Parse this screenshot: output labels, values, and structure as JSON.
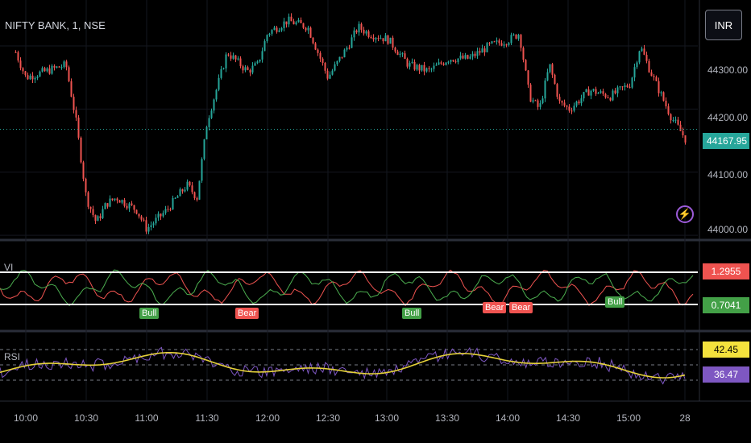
{
  "header": {
    "symbol": "NIFTY BANK, 1, NSE",
    "currency": "INR"
  },
  "colors": {
    "up": "#26a69a",
    "down": "#ef5350",
    "vi_plus": "#4caf50",
    "vi_minus": "#ef5350",
    "rsi": "#7e57c2",
    "rsi_ma": "#e6d23a",
    "price_badge": "#26a69a"
  },
  "price_axis": {
    "ticks": [
      "44300.00",
      "44200.00",
      "44100.00",
      "44000.00"
    ],
    "last_price": "44167.95"
  },
  "vi_pane": {
    "label": "VI",
    "upper_value": "1.2955",
    "lower_value": "0.7041",
    "signals": [
      {
        "text": "Bull",
        "type": "bull",
        "time": "10:57"
      },
      {
        "text": "Bear",
        "type": "bear",
        "time": "11:38"
      },
      {
        "text": "Bull",
        "type": "bull",
        "time": "13:10"
      },
      {
        "text": "Bear",
        "type": "bear",
        "time": "13:51"
      },
      {
        "text": "Bear",
        "type": "bear",
        "time": "13:58"
      },
      {
        "text": "Bull",
        "type": "bull",
        "time": "14:47"
      }
    ]
  },
  "rsi_pane": {
    "label": "RSI",
    "ma_value": "42.45",
    "rsi_value": "36.47"
  },
  "time_axis": [
    "10:00",
    "10:30",
    "11:00",
    "11:30",
    "12:00",
    "12:30",
    "13:00",
    "13:30",
    "14:00",
    "14:30",
    "15:00",
    "28"
  ],
  "chart_data": {
    "type": "line",
    "title": "NIFTY BANK, 1, NSE",
    "xlabel": "",
    "ylabel": "",
    "x": [
      "09:55",
      "10:00",
      "10:10",
      "10:20",
      "10:25",
      "10:30",
      "10:35",
      "10:40",
      "10:45",
      "10:55",
      "11:00",
      "11:10",
      "11:15",
      "11:20",
      "11:25",
      "11:30",
      "11:40",
      "11:50",
      "11:55",
      "12:00",
      "12:10",
      "12:20",
      "12:30",
      "12:40",
      "12:45",
      "12:50",
      "13:00",
      "13:10",
      "13:20",
      "13:30",
      "13:40",
      "13:50",
      "14:00",
      "14:05",
      "14:10",
      "14:15",
      "14:20",
      "14:25",
      "14:30",
      "14:40",
      "14:50",
      "15:00",
      "15:05",
      "15:10",
      "15:20",
      "15:28"
    ],
    "series": [
      {
        "values": [
          44290,
          44250,
          44260,
          44270,
          44180,
          44060,
          44020,
          44050,
          44060,
          44040,
          44010,
          44040,
          44060,
          44080,
          44060,
          44180,
          44290,
          44260,
          44270,
          44320,
          44340,
          44330,
          44250,
          44300,
          44330,
          44320,
          44310,
          44270,
          44260,
          44280,
          44280,
          44300,
          44310,
          44320,
          44220,
          44200,
          44270,
          44210,
          44200,
          44230,
          44220,
          44240,
          44300,
          44260,
          44190,
          44150
        ]
      }
    ],
    "ylim": [
      43990,
      44360
    ]
  }
}
